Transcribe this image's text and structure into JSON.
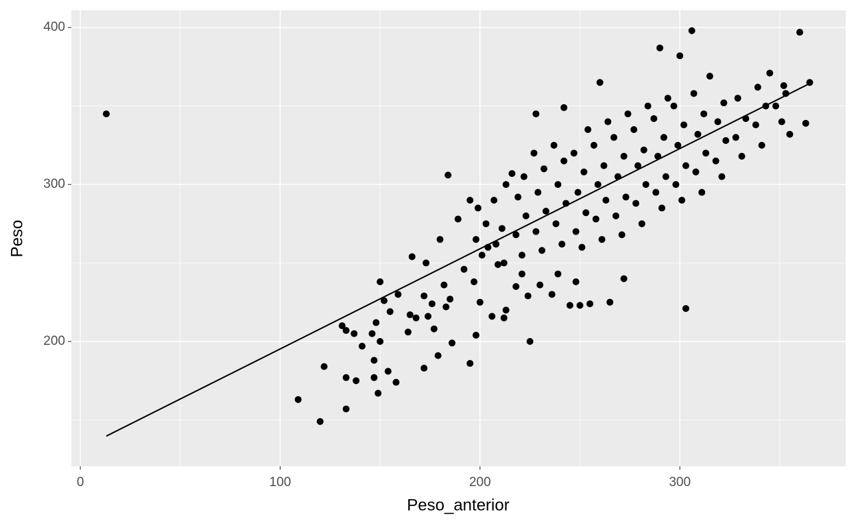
{
  "chart_data": {
    "type": "scatter",
    "x_label": "Peso_anterior",
    "y_label": "Peso",
    "xlim": [
      -4.5,
      383
    ],
    "ylim": [
      120.5,
      411
    ],
    "xticks": [
      0,
      100,
      200,
      300
    ],
    "yticks": [
      200,
      300,
      400
    ],
    "x_minor_grid": [
      50,
      150,
      250,
      350
    ],
    "y_minor_grid": [
      150,
      250,
      350
    ],
    "grid": true,
    "color": "#000000",
    "x": [
      13,
      109,
      120,
      122,
      131,
      133,
      133,
      133,
      137,
      138,
      141,
      146,
      147,
      147,
      148,
      149,
      150,
      150,
      152,
      154,
      155,
      158,
      159,
      164,
      165,
      166,
      168,
      172,
      172,
      173,
      174,
      176,
      177,
      179,
      180,
      182,
      183,
      184,
      185,
      186,
      189,
      192,
      195,
      195,
      197,
      198,
      200,
      204,
      206,
      209,
      212,
      213,
      216,
      218,
      221,
      224,
      225,
      228,
      230,
      236,
      239,
      242,
      245,
      248,
      250,
      255,
      265,
      272,
      303,
      306,
      300,
      290,
      360,
      363,
      355,
      365,
      352,
      345,
      315,
      260,
      201,
      198,
      203,
      199,
      212,
      208,
      211,
      207,
      213,
      221,
      218,
      223,
      219,
      222,
      231,
      228,
      233,
      229,
      232,
      227,
      241,
      238,
      243,
      239,
      242,
      237,
      251,
      248,
      253,
      249,
      252,
      247,
      254,
      261,
      258,
      263,
      259,
      262,
      257,
      264,
      271,
      268,
      273,
      269,
      272,
      267,
      274,
      281,
      278,
      283,
      279,
      282,
      277,
      284,
      291,
      288,
      293,
      289,
      292,
      287,
      294,
      301,
      298,
      303,
      299,
      302,
      297,
      311,
      308,
      313,
      309,
      312,
      307,
      321,
      318,
      323,
      319,
      322,
      331,
      328,
      333,
      329,
      341,
      338,
      343,
      339,
      351,
      348,
      353
    ],
    "y": [
      345,
      163,
      149,
      184,
      210,
      157,
      177,
      207,
      205,
      175,
      197,
      205,
      188,
      177,
      212,
      167,
      200,
      238,
      226,
      181,
      219,
      174,
      230,
      206,
      217,
      254,
      215,
      229,
      183,
      250,
      216,
      224,
      208,
      191,
      265,
      236,
      222,
      306,
      227,
      199,
      278,
      246,
      290,
      186,
      238,
      204,
      225,
      260,
      216,
      249,
      215,
      220,
      307,
      235,
      243,
      229,
      200,
      345,
      236,
      230,
      243,
      349,
      223,
      238,
      223,
      224,
      225,
      240,
      221,
      398,
      382,
      387,
      397,
      339,
      332,
      365,
      363,
      371,
      369,
      365,
      255,
      265,
      275,
      285,
      250,
      262,
      272,
      290,
      300,
      255,
      268,
      280,
      292,
      305,
      258,
      270,
      283,
      295,
      310,
      320,
      262,
      275,
      288,
      300,
      315,
      325,
      260,
      270,
      282,
      295,
      308,
      320,
      335,
      265,
      278,
      290,
      300,
      312,
      325,
      340,
      268,
      280,
      292,
      305,
      318,
      330,
      345,
      275,
      288,
      300,
      312,
      322,
      335,
      350,
      285,
      295,
      305,
      318,
      330,
      342,
      355,
      290,
      300,
      312,
      325,
      338,
      350,
      295,
      308,
      320,
      332,
      345,
      358,
      305,
      315,
      328,
      340,
      352,
      318,
      330,
      342,
      355,
      325,
      338,
      350,
      362,
      340,
      350,
      358
    ],
    "fit_x": [
      13,
      366
    ],
    "fit_y": [
      139.7,
      365
    ]
  }
}
